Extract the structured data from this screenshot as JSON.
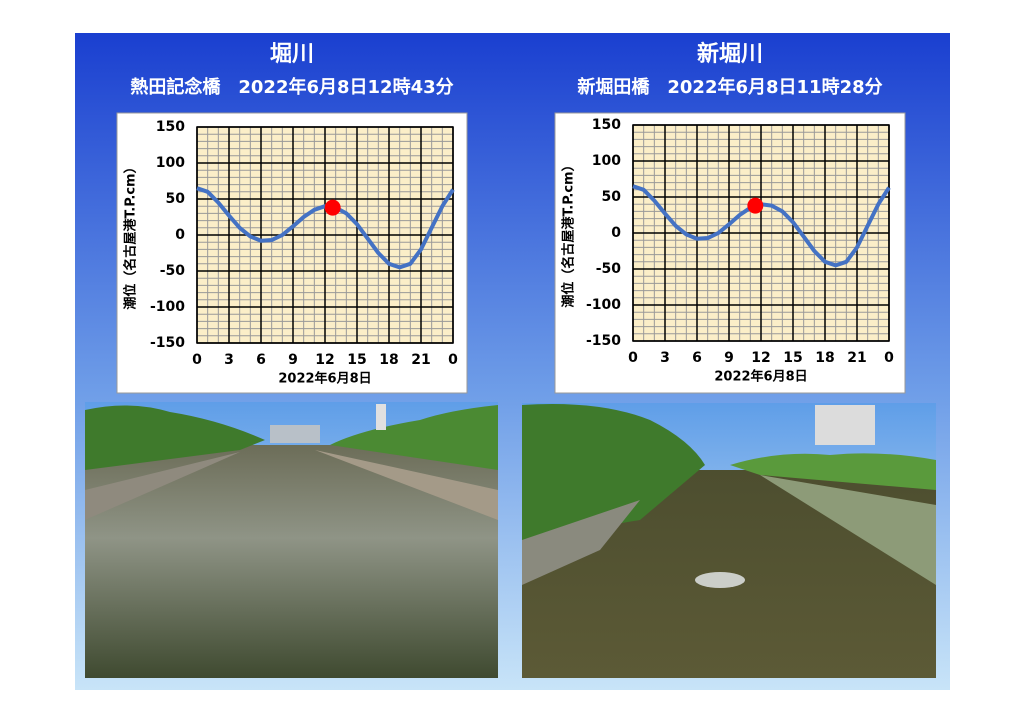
{
  "chart_data": [
    {
      "type": "line",
      "title": "堀川",
      "subtitle": "熱田記念橋　2022年6月8日12時43分",
      "x_label": "2022年6月8日",
      "y_label": "潮位（名古屋港T.P.cm）",
      "x": [
        0,
        1,
        2,
        3,
        4,
        5,
        6,
        7,
        8,
        9,
        10,
        11,
        12,
        13,
        14,
        15,
        16,
        17,
        18,
        19,
        20,
        21,
        22,
        23,
        24
      ],
      "series": [
        {
          "color": "#4472c4",
          "values": [
            65,
            60,
            45,
            27,
            10,
            -2,
            -8,
            -7,
            0,
            12,
            25,
            35,
            40,
            38,
            30,
            15,
            -5,
            -25,
            -40,
            -45,
            -40,
            -20,
            10,
            40,
            63
          ]
        },
        {
          "color": "#ff0000",
          "x": [
            12.72
          ],
          "values": [
            38
          ]
        }
      ],
      "xlim": [
        0,
        24
      ],
      "xticks": [
        0,
        3,
        6,
        9,
        12,
        15,
        18,
        21,
        {
          "value": 24,
          "label": "0"
        }
      ],
      "ylim": [
        -150,
        150
      ],
      "yticks": [
        -150,
        -100,
        -50,
        0,
        50,
        100,
        150
      ],
      "grid": true
    },
    {
      "type": "line",
      "title": "新堀川",
      "subtitle": "新堀田橋　2022年6月8日11時28分",
      "x_label": "2022年6月8日",
      "y_label": "潮位（名古屋港T.P.cm）",
      "x": [
        0,
        1,
        2,
        3,
        4,
        5,
        6,
        7,
        8,
        9,
        10,
        11,
        12,
        13,
        14,
        15,
        16,
        17,
        18,
        19,
        20,
        21,
        22,
        23,
        24
      ],
      "series": [
        {
          "color": "#4472c4",
          "values": [
            65,
            60,
            45,
            27,
            10,
            -2,
            -8,
            -7,
            0,
            12,
            25,
            35,
            40,
            38,
            30,
            15,
            -5,
            -25,
            -40,
            -45,
            -40,
            -20,
            10,
            40,
            63
          ]
        },
        {
          "color": "#ff0000",
          "x": [
            11.47
          ],
          "values": [
            38
          ]
        }
      ],
      "xlim": [
        0,
        24
      ],
      "xticks": [
        0,
        3,
        6,
        9,
        12,
        15,
        18,
        21,
        {
          "value": 24,
          "label": "0"
        }
      ],
      "ylim": [
        -150,
        150
      ],
      "yticks": [
        -150,
        -100,
        -50,
        0,
        50,
        100,
        150
      ],
      "grid": true
    }
  ]
}
